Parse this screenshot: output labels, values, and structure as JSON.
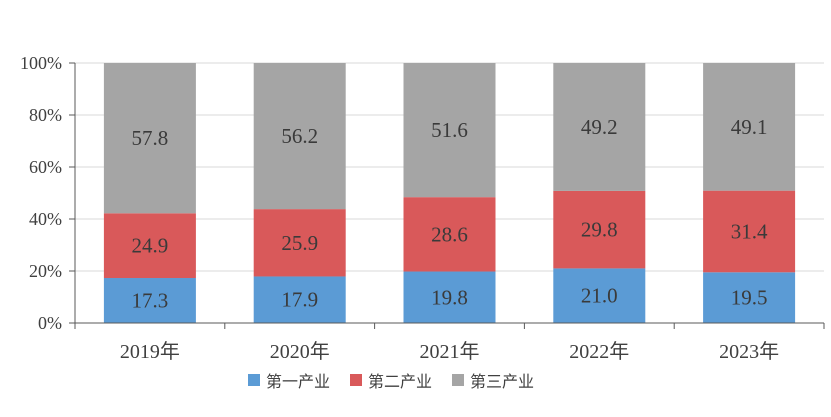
{
  "chart_data": {
    "type": "bar",
    "stacked": true,
    "categories": [
      "2019年",
      "2020年",
      "2021年",
      "2022年",
      "2023年"
    ],
    "series": [
      {
        "name": "第一产业",
        "color": "#5b9bd5",
        "values": [
          17.3,
          17.9,
          19.8,
          21.0,
          19.5
        ]
      },
      {
        "name": "第二产业",
        "color": "#d9595a",
        "values": [
          24.9,
          25.9,
          28.6,
          29.8,
          31.4
        ]
      },
      {
        "name": "第三产业",
        "color": "#a5a5a5",
        "values": [
          57.8,
          56.2,
          51.6,
          49.2,
          49.1
        ]
      }
    ],
    "value_labels": [
      [
        "17.3",
        "17.9",
        "19.8",
        "21.0",
        "19.5"
      ],
      [
        "24.9",
        "25.9",
        "28.6",
        "29.8",
        "31.4"
      ],
      [
        "57.8",
        "56.2",
        "51.6",
        "49.2",
        "49.1"
      ]
    ],
    "yticks": [
      "0%",
      "20%",
      "40%",
      "60%",
      "80%",
      "100%"
    ],
    "ylim": [
      0,
      100
    ],
    "grid": true,
    "legend_position": "bottom",
    "title": "",
    "xlabel": "",
    "ylabel": ""
  }
}
